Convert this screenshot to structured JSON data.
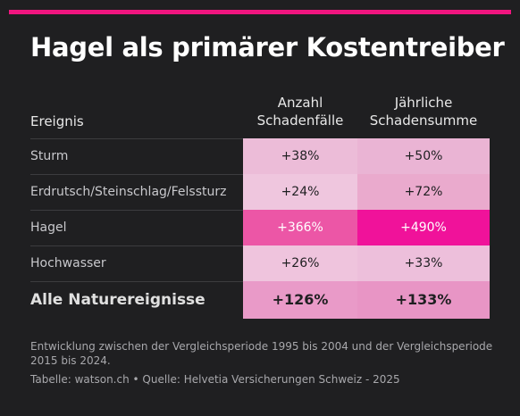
{
  "title": "Hagel als primärer Kostentreiber",
  "accent_color": "#f0157f",
  "table": {
    "header_label": "Ereignis",
    "header_col1": "Anzahl\nSchadenfälle",
    "header_col2": "Jährliche\nSchadensumme"
  },
  "chart_data": {
    "type": "table",
    "columns": [
      "Ereignis",
      "Anzahl Schadenfälle",
      "Jährliche Schadensumme"
    ],
    "rows": [
      {
        "label": "Sturm",
        "values": [
          "+38%",
          "+50%"
        ],
        "colors": [
          "#ecbcd8",
          "#eab4d4"
        ]
      },
      {
        "label": "Erdrutsch/Steinschlag/Felssturz",
        "values": [
          "+24%",
          "+72%"
        ],
        "colors": [
          "#efc6de",
          "#eaaacd"
        ]
      },
      {
        "label": "Hagel",
        "values": [
          "+366%",
          "+490%"
        ],
        "colors": [
          "#ec56a6",
          "#f0129a"
        ]
      },
      {
        "label": "Hochwasser",
        "values": [
          "+26%",
          "+33%"
        ],
        "colors": [
          "#efc4dd",
          "#edbfdb"
        ]
      },
      {
        "label": "Alle Naturereignisse",
        "values": [
          "+126%",
          "+133%"
        ],
        "colors": [
          "#e99ac8",
          "#e895c5"
        ],
        "total": true
      }
    ]
  },
  "note": "Entwicklung zwischen der Vergleichsperiode 1995 bis 2004 und der Vergleichsperiode 2015 bis 2024.",
  "source": "Tabelle: watson.ch • Quelle: Helvetia Versicherungen Schweiz - 2025"
}
